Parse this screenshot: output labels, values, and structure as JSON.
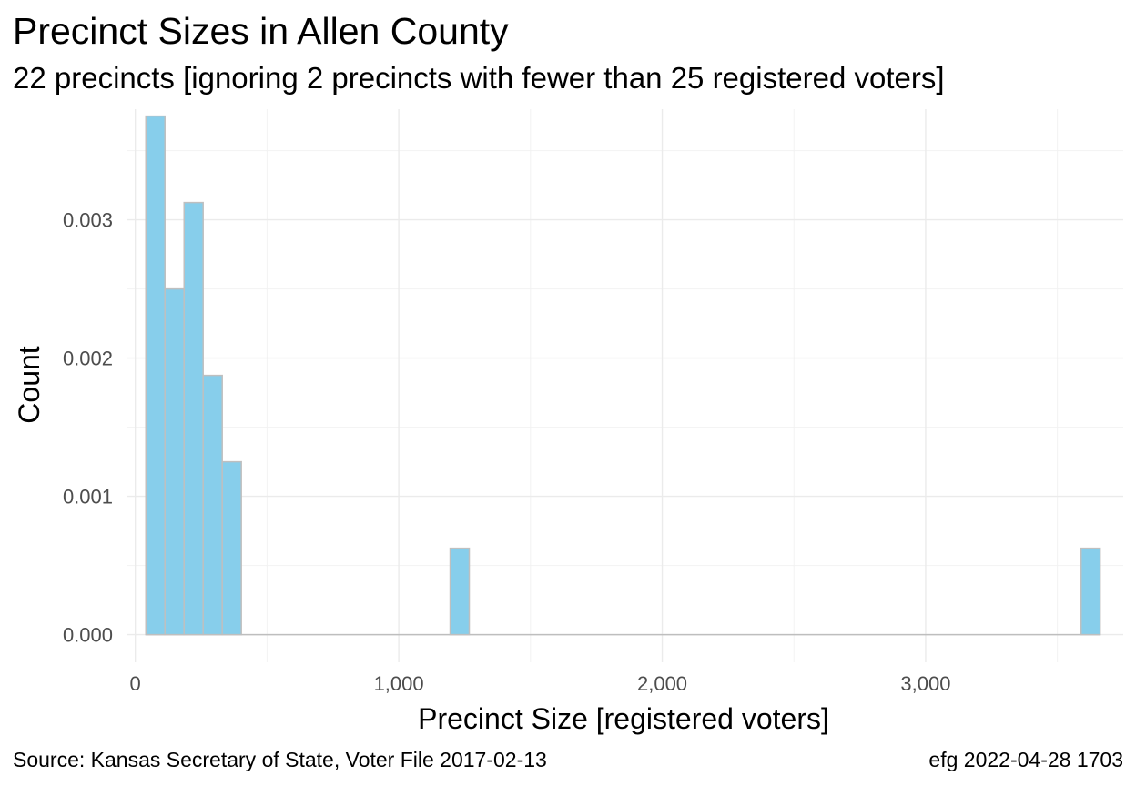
{
  "chart_data": {
    "type": "bar",
    "title": "Precinct Sizes in Allen County",
    "subtitle": "22 precincts [ignoring 2 precincts with fewer than 25 registered voters]",
    "xlabel": "Precinct Size [registered voters]",
    "ylabel": "Count",
    "caption_left": "Source:  Kansas Secretary of State, Voter File  2017-02-13",
    "caption_right": "efg 2022-04-28 1703",
    "xlim": [
      -30,
      3750
    ],
    "ylim": [
      -0.0002,
      0.0038
    ],
    "x_ticks": [
      0,
      1000,
      2000,
      3000
    ],
    "x_tick_labels": [
      "0",
      "1,000",
      "2,000",
      "3,000"
    ],
    "y_ticks": [
      0,
      0.001,
      0.002,
      0.003
    ],
    "y_tick_labels": [
      "0.000",
      "0.001",
      "0.002",
      "0.003"
    ],
    "bin_width": 72.5,
    "bins": [
      {
        "x0": 40,
        "x1": 112.5,
        "value": 0.00375
      },
      {
        "x0": 112.5,
        "x1": 185,
        "value": 0.0025
      },
      {
        "x0": 185,
        "x1": 257.5,
        "value": 0.003125
      },
      {
        "x0": 257.5,
        "x1": 330,
        "value": 0.001875
      },
      {
        "x0": 330,
        "x1": 402.5,
        "value": 0.00125
      },
      {
        "x0": 1195,
        "x1": 1267.5,
        "value": 0.000625
      },
      {
        "x0": 3590,
        "x1": 3662.5,
        "value": 0.000625
      }
    ],
    "bar_fill": "#87ceeb",
    "bar_stroke": "#bfbfbf",
    "baseline_color": "#bebebe",
    "grid": true
  }
}
